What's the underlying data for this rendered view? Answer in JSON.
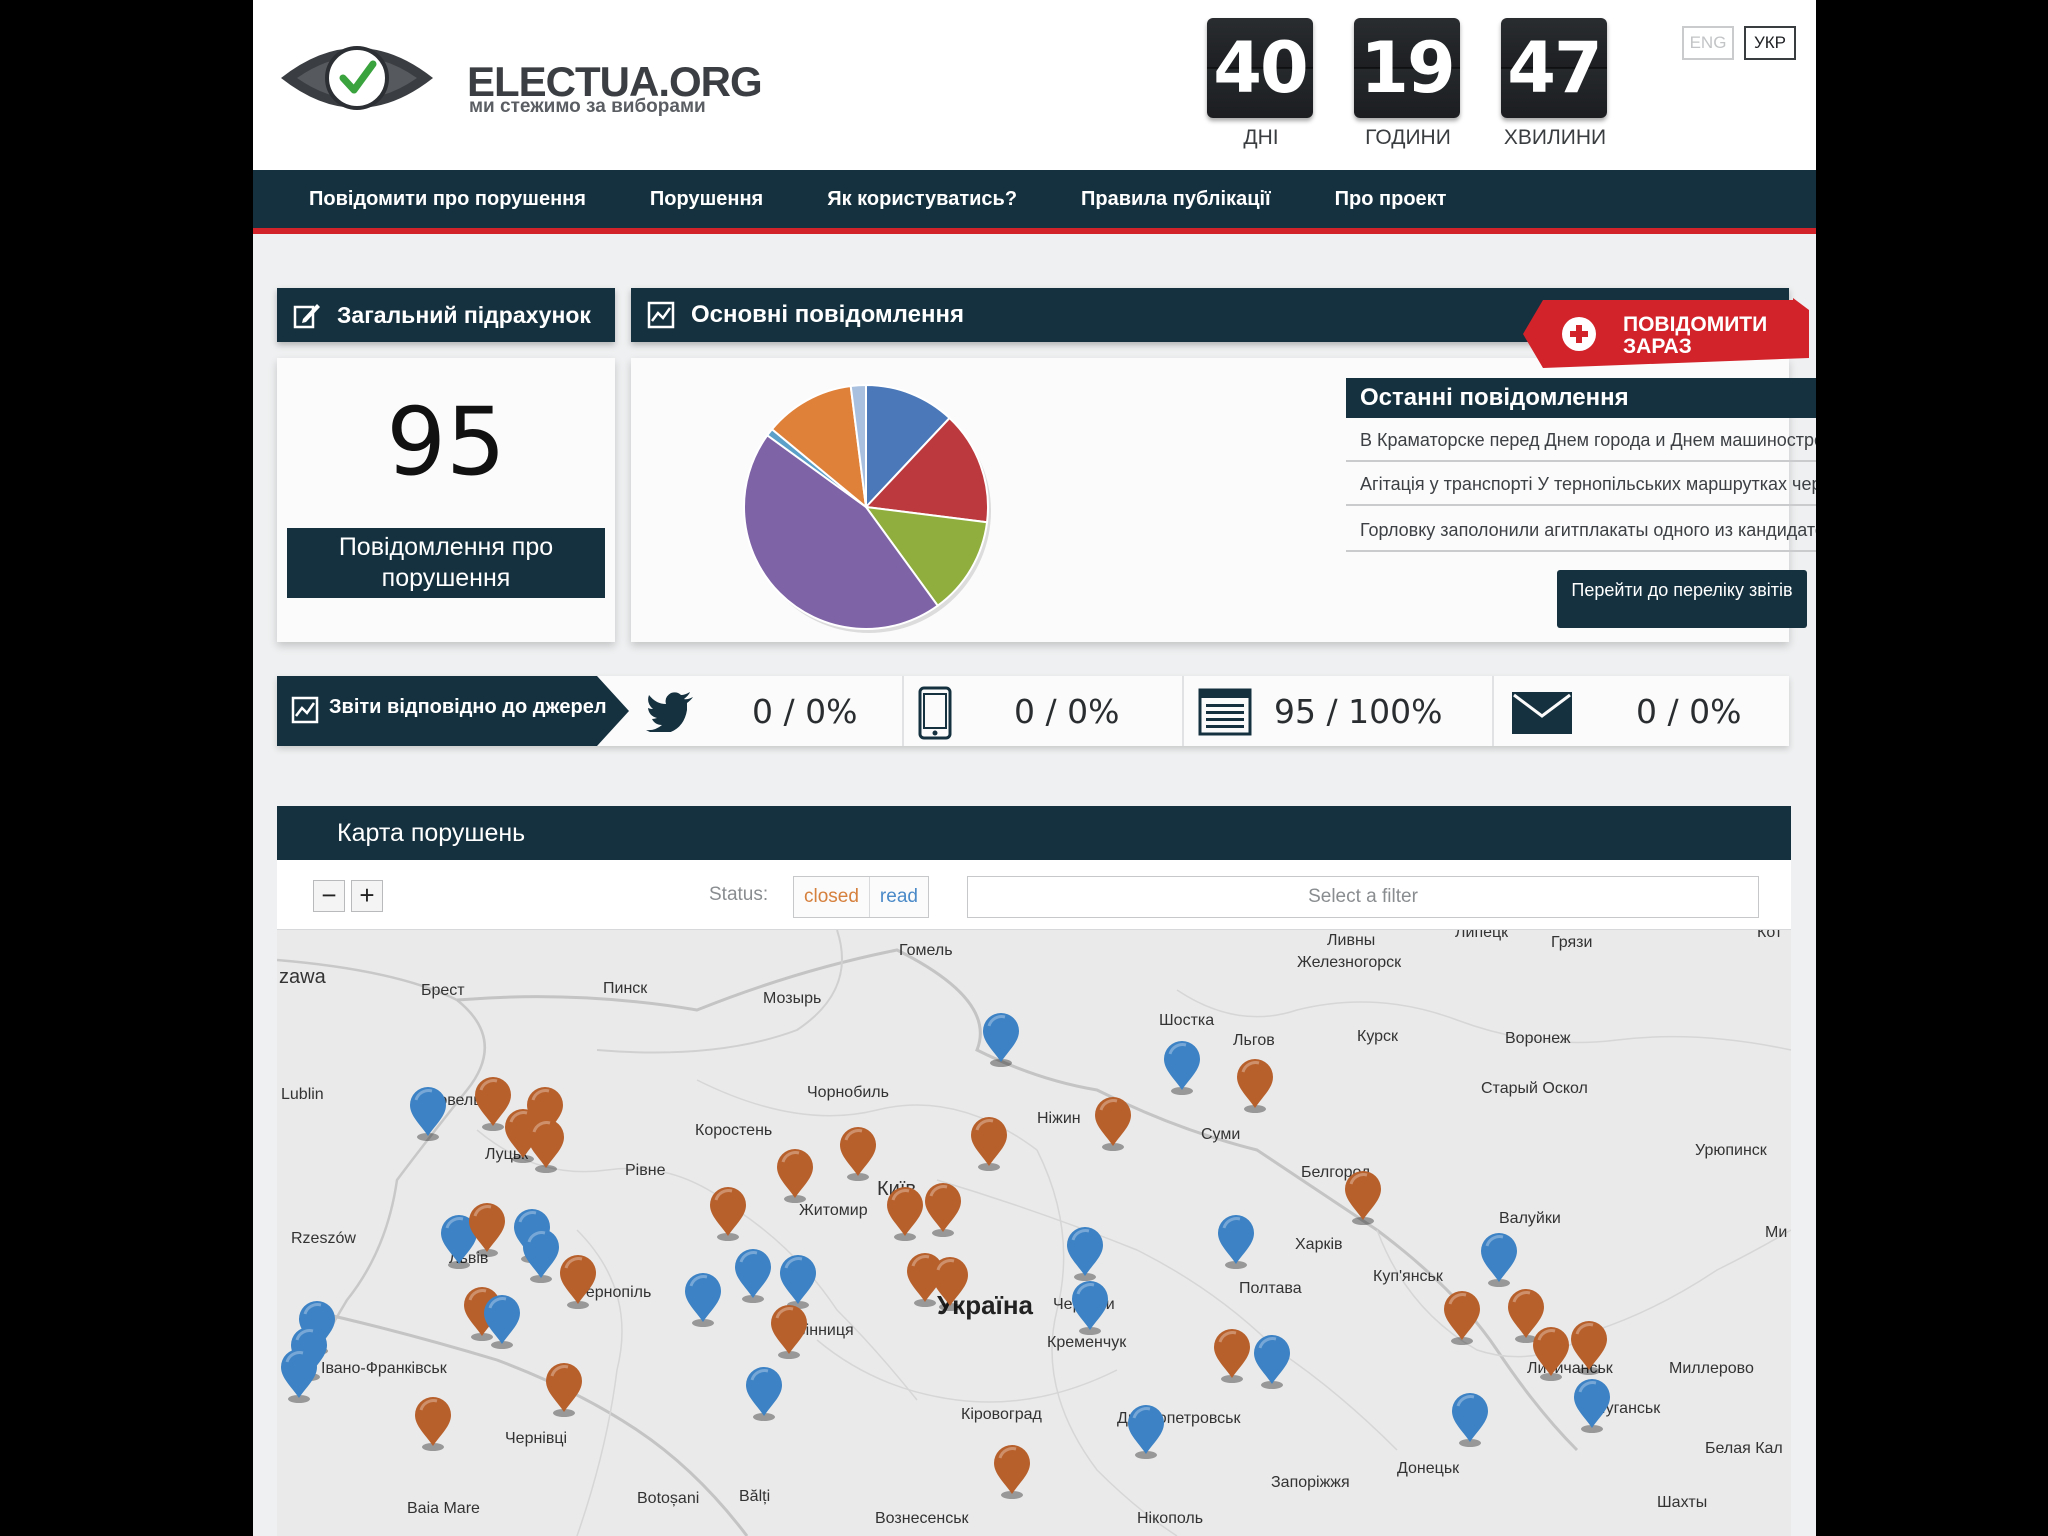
{
  "site": {
    "title": "ELECTUA.ORG",
    "subtitle": "ми стежимо за виборами"
  },
  "countdown": [
    {
      "value": "40",
      "label": "ДНІ"
    },
    {
      "value": "19",
      "label": "ГОДИНИ"
    },
    {
      "value": "47",
      "label": "ХВИЛИНИ"
    }
  ],
  "lang": {
    "eng": "ENG",
    "ukr": "УКР"
  },
  "nav": [
    "Повідомити про порушення",
    "Порушення",
    "Як користуватись?",
    "Правила публікації",
    "Про проект"
  ],
  "total": {
    "title": "Загальний підрахунок",
    "count": "95",
    "label": "Повідомлення про порушення"
  },
  "main": {
    "title": "Основні повідомлення",
    "report_now": "ПОВІДОМИТИ ЗАРАЗ",
    "latest_title": "Останні повідомлення",
    "latest": [
      "В Краматорске перед Днем города и Днем машиностроител",
      "Агітація у транспорті У тернопільських маршрутках чер...",
      "Горловку заполонили агитплакаты одного из кандидатов ..."
    ],
    "reports_button": "Перейти до переліку звітів",
    "pie": {
      "type": "pie",
      "slices": [
        {
          "value": 12,
          "color": "#4a78b8"
        },
        {
          "value": 15,
          "color": "#bc3a3e"
        },
        {
          "value": 13,
          "color": "#8fae3e"
        },
        {
          "value": 45,
          "color": "#7e63a6"
        },
        {
          "value": 1,
          "color": "#5ba0c8"
        },
        {
          "value": 12,
          "color": "#e0813a"
        },
        {
          "value": 2,
          "color": "#a9c0df"
        }
      ]
    }
  },
  "sources": {
    "title": "Звіти відповідно до джерел",
    "items": [
      {
        "icon": "twitter-icon",
        "value": "0 / 0%"
      },
      {
        "icon": "mobile-icon",
        "value": "0 / 0%"
      },
      {
        "icon": "web-form-icon",
        "value": "95 / 100%"
      },
      {
        "icon": "email-icon",
        "value": "0 / 0%"
      }
    ]
  },
  "map": {
    "title": "Карта порушень",
    "zoom_out": "−",
    "zoom_in": "+",
    "status_label": "Status:",
    "status_closed": "closed",
    "status_read": "read",
    "filter_placeholder": "Select a filter",
    "colors": {
      "closed": "#b8602c",
      "read": "#3c82c4"
    },
    "cities": [
      "zawa",
      "Брест",
      "Пинск",
      "Мозырь",
      "Гомель",
      "Ливны",
      "Липецк",
      "Грязи",
      "Кот",
      "Железногорск",
      "Шостка",
      "Курск",
      "Льгов",
      "Воронеж",
      "Lublin",
      "Ковель",
      "Чорнобиль",
      "Ніжин",
      "Старый Оскол",
      "Луцьк",
      "Рівне",
      "Коростень",
      "Суми",
      "Україна",
      "Київ",
      "Житомир",
      "Белгород",
      "Урюпинск",
      "Rzeszów",
      "Львів",
      "Тернопіль",
      "Харків",
      "Валуйки",
      "Ми",
      "Полтава",
      "Куп'янськ",
      "Черкаси",
      "Вінниця",
      "Кременчук",
      "Івано-Франківськ",
      "Лисичанськ",
      "Миллерово",
      "Луганськ",
      "Чернівці",
      "Кіровоград",
      "Дніпропетровськ",
      "Донецьк",
      "Белая Кал",
      "Baia Mare",
      "Botoșani",
      "Bălți",
      "Запоріжжя",
      "Шахты",
      "Вознесенськ",
      "Нікополь"
    ]
  }
}
